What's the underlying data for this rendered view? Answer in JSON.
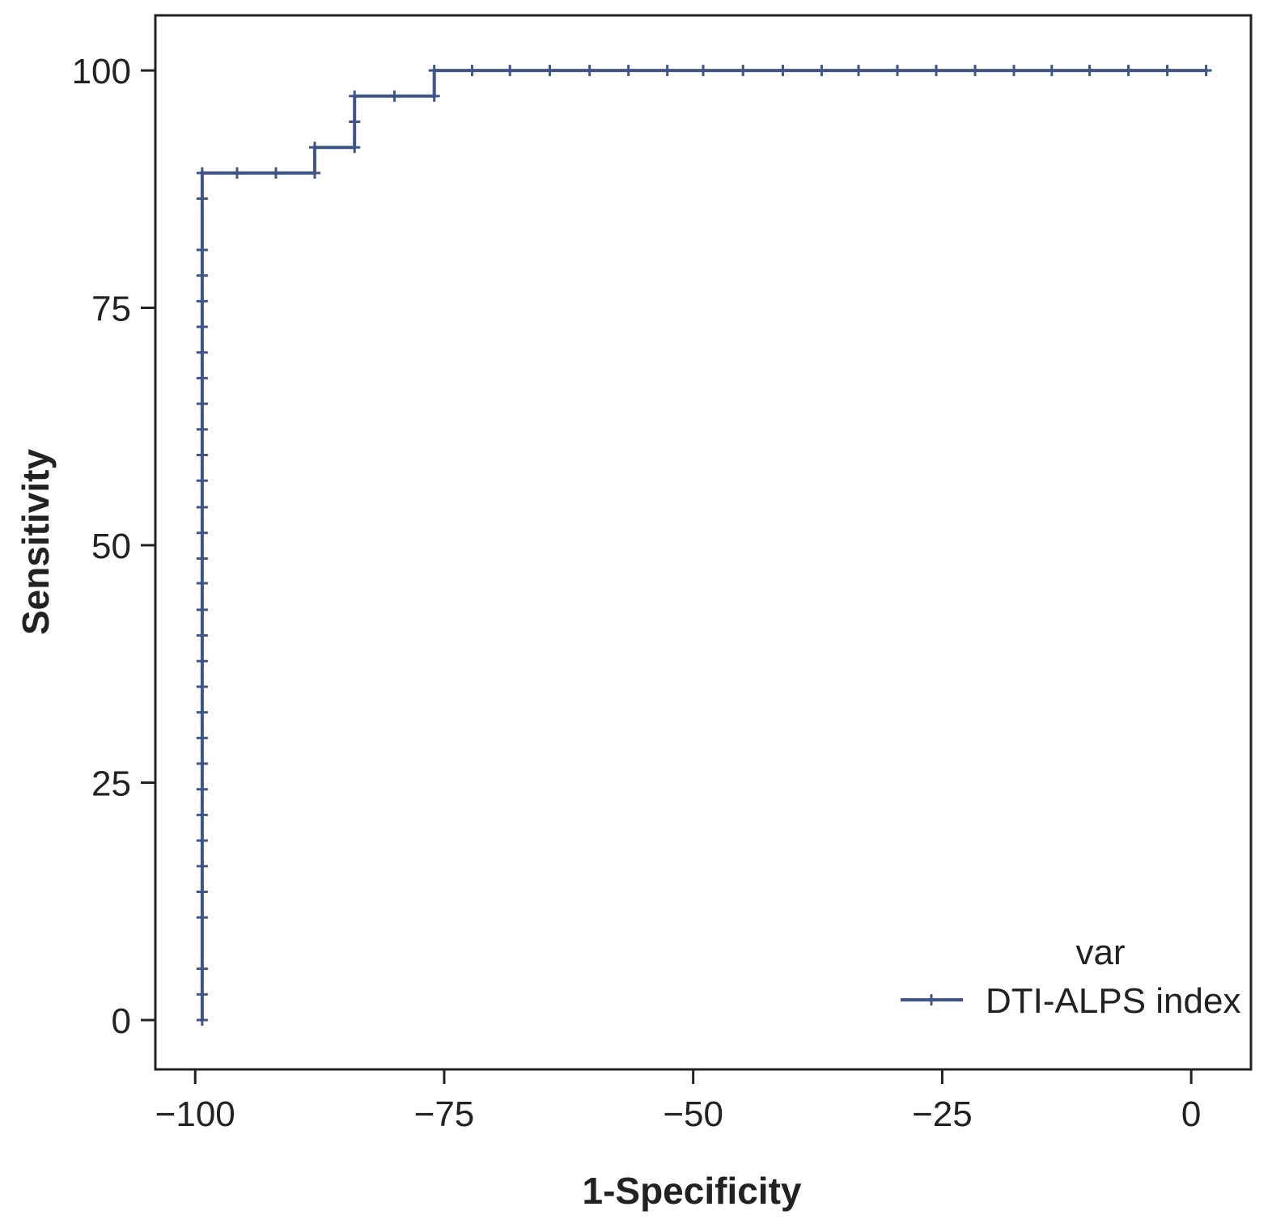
{
  "chart_data": {
    "type": "line",
    "xlabel": "1-Specificity",
    "ylabel": "Sensitivity",
    "xlim": [
      -104,
      6
    ],
    "ylim": [
      -5.2,
      105.8
    ],
    "x_ticks": [
      -100,
      -75,
      -50,
      -25,
      0
    ],
    "x_tick_labels": [
      "−100",
      "−75",
      "−50",
      "−25",
      "0"
    ],
    "y_ticks": [
      0,
      25,
      50,
      75,
      100
    ],
    "y_tick_labels": [
      "0",
      "25",
      "50",
      "75",
      "100"
    ],
    "grid": false,
    "legend": {
      "title": "var",
      "position": "bottom-right"
    },
    "series": [
      {
        "name": "DTI-ALPS index",
        "color": "#3f5588",
        "marker": "plus",
        "step_path": [
          [
            -99.3,
            0
          ],
          [
            -99.3,
            89.2
          ],
          [
            -88,
            89.2
          ],
          [
            -88,
            91.9
          ],
          [
            -84,
            91.9
          ],
          [
            -84,
            97.3
          ],
          [
            -76,
            97.3
          ],
          [
            -76,
            100
          ],
          [
            1.5,
            100
          ]
        ],
        "points": [
          [
            -99.3,
            0
          ],
          [
            -99.3,
            2.7
          ],
          [
            -99.3,
            5.4
          ],
          [
            -99.3,
            10.8
          ],
          [
            -99.3,
            13.5
          ],
          [
            -99.3,
            16.2
          ],
          [
            -99.3,
            18.9
          ],
          [
            -99.3,
            21.6
          ],
          [
            -99.3,
            24.3
          ],
          [
            -99.3,
            27.0
          ],
          [
            -99.3,
            29.7
          ],
          [
            -99.3,
            32.4
          ],
          [
            -99.3,
            35.1
          ],
          [
            -99.3,
            37.8
          ],
          [
            -99.3,
            40.5
          ],
          [
            -99.3,
            43.2
          ],
          [
            -99.3,
            46.0
          ],
          [
            -99.3,
            48.6
          ],
          [
            -99.3,
            51.3
          ],
          [
            -99.3,
            54.0
          ],
          [
            -99.3,
            56.8
          ],
          [
            -99.3,
            59.5
          ],
          [
            -99.3,
            62.2
          ],
          [
            -99.3,
            64.9
          ],
          [
            -99.3,
            67.6
          ],
          [
            -99.3,
            70.3
          ],
          [
            -99.3,
            73.0
          ],
          [
            -99.3,
            75.7
          ],
          [
            -99.3,
            78.4
          ],
          [
            -99.3,
            81.1
          ],
          [
            -99.3,
            86.5
          ],
          [
            -99.3,
            89.2
          ],
          [
            -95.8,
            89.2
          ],
          [
            -91.9,
            89.2
          ],
          [
            -88,
            89.2
          ],
          [
            -88,
            91.9
          ],
          [
            -84,
            91.9
          ],
          [
            -84,
            94.6
          ],
          [
            -84,
            97.3
          ],
          [
            -80,
            97.3
          ],
          [
            -76,
            97.3
          ],
          [
            -76,
            100
          ],
          [
            -72.2,
            100
          ],
          [
            -68.4,
            100
          ],
          [
            -64.4,
            100
          ],
          [
            -60.4,
            100
          ],
          [
            -56.5,
            100
          ],
          [
            -52.6,
            100
          ],
          [
            -49,
            100
          ],
          [
            -45,
            100
          ],
          [
            -41,
            100
          ],
          [
            -37.1,
            100
          ],
          [
            -33.4,
            100
          ],
          [
            -29.5,
            100
          ],
          [
            -25.6,
            100
          ],
          [
            -21.7,
            100
          ],
          [
            -17.8,
            100
          ],
          [
            -14,
            100
          ],
          [
            -10.2,
            100
          ],
          [
            -6.3,
            100
          ],
          [
            -2.4,
            100
          ],
          [
            1.5,
            100
          ]
        ]
      }
    ]
  }
}
